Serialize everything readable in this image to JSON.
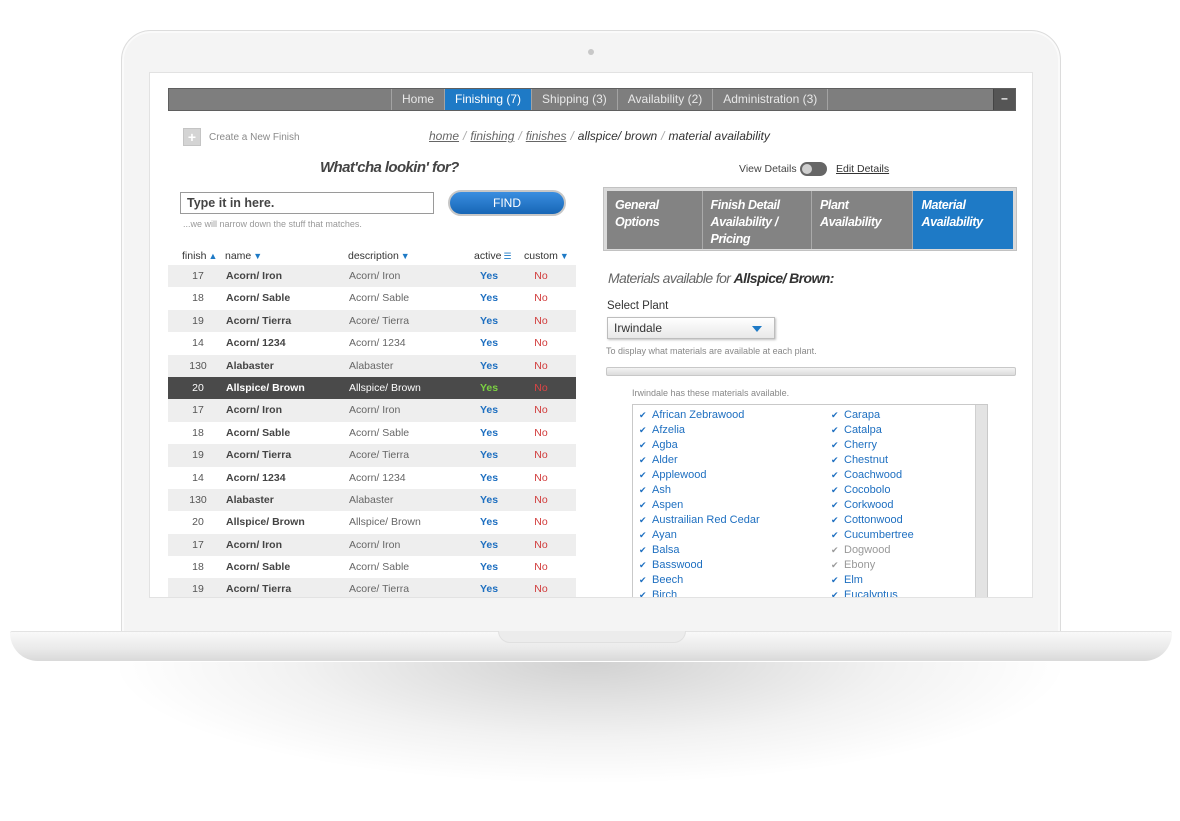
{
  "nav": {
    "items": [
      {
        "label": "Home",
        "active": false
      },
      {
        "label": "Finishing (7)",
        "active": true
      },
      {
        "label": "Shipping (3)",
        "active": false
      },
      {
        "label": "Availability (2)",
        "active": false
      },
      {
        "label": "Administration (3)",
        "active": false
      }
    ],
    "minimize": "–"
  },
  "create_new": {
    "icon": "plus-icon",
    "label": "Create a New Finish"
  },
  "breadcrumb": [
    "home",
    "finishing",
    "finishes",
    "allspice/ brown",
    "material availability"
  ],
  "search": {
    "heading": "What'cha lookin' for?",
    "placeholder": "Type it in here.",
    "hint": "...we will narrow down the stuff that matches.",
    "button": "FIND"
  },
  "table": {
    "headers": {
      "finish": "finish",
      "name": "name",
      "description": "description",
      "active": "active",
      "custom": "custom"
    },
    "rows": [
      {
        "finish": "17",
        "name": "Acorn/ Iron",
        "description": "Acorn/ Iron",
        "active": "Yes",
        "custom": "No"
      },
      {
        "finish": "18",
        "name": "Acorn/ Sable",
        "description": "Acorn/ Sable",
        "active": "Yes",
        "custom": "No"
      },
      {
        "finish": "19",
        "name": "Acorn/ Tierra",
        "description": "Acore/ Tierra",
        "active": "Yes",
        "custom": "No"
      },
      {
        "finish": "14",
        "name": "Acorn/ 1234",
        "description": "Acorn/ 1234",
        "active": "Yes",
        "custom": "No"
      },
      {
        "finish": "130",
        "name": "Alabaster",
        "description": "Alabaster",
        "active": "Yes",
        "custom": "No"
      },
      {
        "finish": "20",
        "name": "Allspice/ Brown",
        "description": "Allspice/ Brown",
        "active": "Yes",
        "custom": "No",
        "selected": true
      },
      {
        "finish": "17",
        "name": "Acorn/ Iron",
        "description": "Acorn/ Iron",
        "active": "Yes",
        "custom": "No"
      },
      {
        "finish": "18",
        "name": "Acorn/ Sable",
        "description": "Acorn/ Sable",
        "active": "Yes",
        "custom": "No"
      },
      {
        "finish": "19",
        "name": "Acorn/ Tierra",
        "description": "Acore/ Tierra",
        "active": "Yes",
        "custom": "No"
      },
      {
        "finish": "14",
        "name": "Acorn/ 1234",
        "description": "Acorn/ 1234",
        "active": "Yes",
        "custom": "No"
      },
      {
        "finish": "130",
        "name": "Alabaster",
        "description": "Alabaster",
        "active": "Yes",
        "custom": "No"
      },
      {
        "finish": "20",
        "name": "Allspice/ Brown",
        "description": "Allspice/ Brown",
        "active": "Yes",
        "custom": "No"
      },
      {
        "finish": "17",
        "name": "Acorn/ Iron",
        "description": "Acorn/ Iron",
        "active": "Yes",
        "custom": "No"
      },
      {
        "finish": "18",
        "name": "Acorn/ Sable",
        "description": "Acorn/ Sable",
        "active": "Yes",
        "custom": "No"
      },
      {
        "finish": "19",
        "name": "Acorn/ Tierra",
        "description": "Acore/ Tierra",
        "active": "Yes",
        "custom": "No"
      }
    ]
  },
  "details": {
    "view_label": "View Details",
    "edit_label": "Edit Details",
    "toggle_on": false
  },
  "tabs": [
    {
      "line1": "General",
      "line2": "Options",
      "active": false
    },
    {
      "line1": "Finish Detail",
      "line2": "Availability / Pricing",
      "active": false
    },
    {
      "line1": "Plant",
      "line2": "Availability",
      "active": false
    },
    {
      "line1": "Material",
      "line2": "Availability",
      "active": true
    }
  ],
  "materials": {
    "title_prefix": "Materials available for ",
    "title_finish": "Allspice/ Brown:",
    "select_label": "Select Plant",
    "selected_plant": "Irwindale",
    "plant_hint": "To display what materials are available at each plant.",
    "available_note": "Irwindale has these materials available.",
    "left": [
      {
        "name": "African Zebrawood",
        "available": true
      },
      {
        "name": "Afzelia",
        "available": true
      },
      {
        "name": "Agba",
        "available": true
      },
      {
        "name": "Alder",
        "available": true
      },
      {
        "name": "Applewood",
        "available": true
      },
      {
        "name": "Ash",
        "available": true
      },
      {
        "name": "Aspen",
        "available": true
      },
      {
        "name": "Austrailian Red Cedar",
        "available": true
      },
      {
        "name": "Ayan",
        "available": true
      },
      {
        "name": "Balsa",
        "available": true
      },
      {
        "name": "Basswood",
        "available": true
      },
      {
        "name": "Beech",
        "available": true
      },
      {
        "name": "Birch",
        "available": true
      }
    ],
    "right": [
      {
        "name": "Carapa",
        "available": true
      },
      {
        "name": "Catalpa",
        "available": true
      },
      {
        "name": "Cherry",
        "available": true
      },
      {
        "name": "Chestnut",
        "available": true
      },
      {
        "name": "Coachwood",
        "available": true
      },
      {
        "name": "Cocobolo",
        "available": true
      },
      {
        "name": "Corkwood",
        "available": true
      },
      {
        "name": "Cottonwood",
        "available": true
      },
      {
        "name": "Cucumbertree",
        "available": true
      },
      {
        "name": "Dogwood",
        "available": false
      },
      {
        "name": "Ebony",
        "available": false
      },
      {
        "name": "Elm",
        "available": true
      },
      {
        "name": "Eucalyptus",
        "available": true
      }
    ]
  },
  "colors": {
    "accent": "#1e7ac6",
    "nav_bg": "#7e7e7e",
    "selected_row": "#4a4a4a",
    "no_red": "#d13a3a"
  }
}
